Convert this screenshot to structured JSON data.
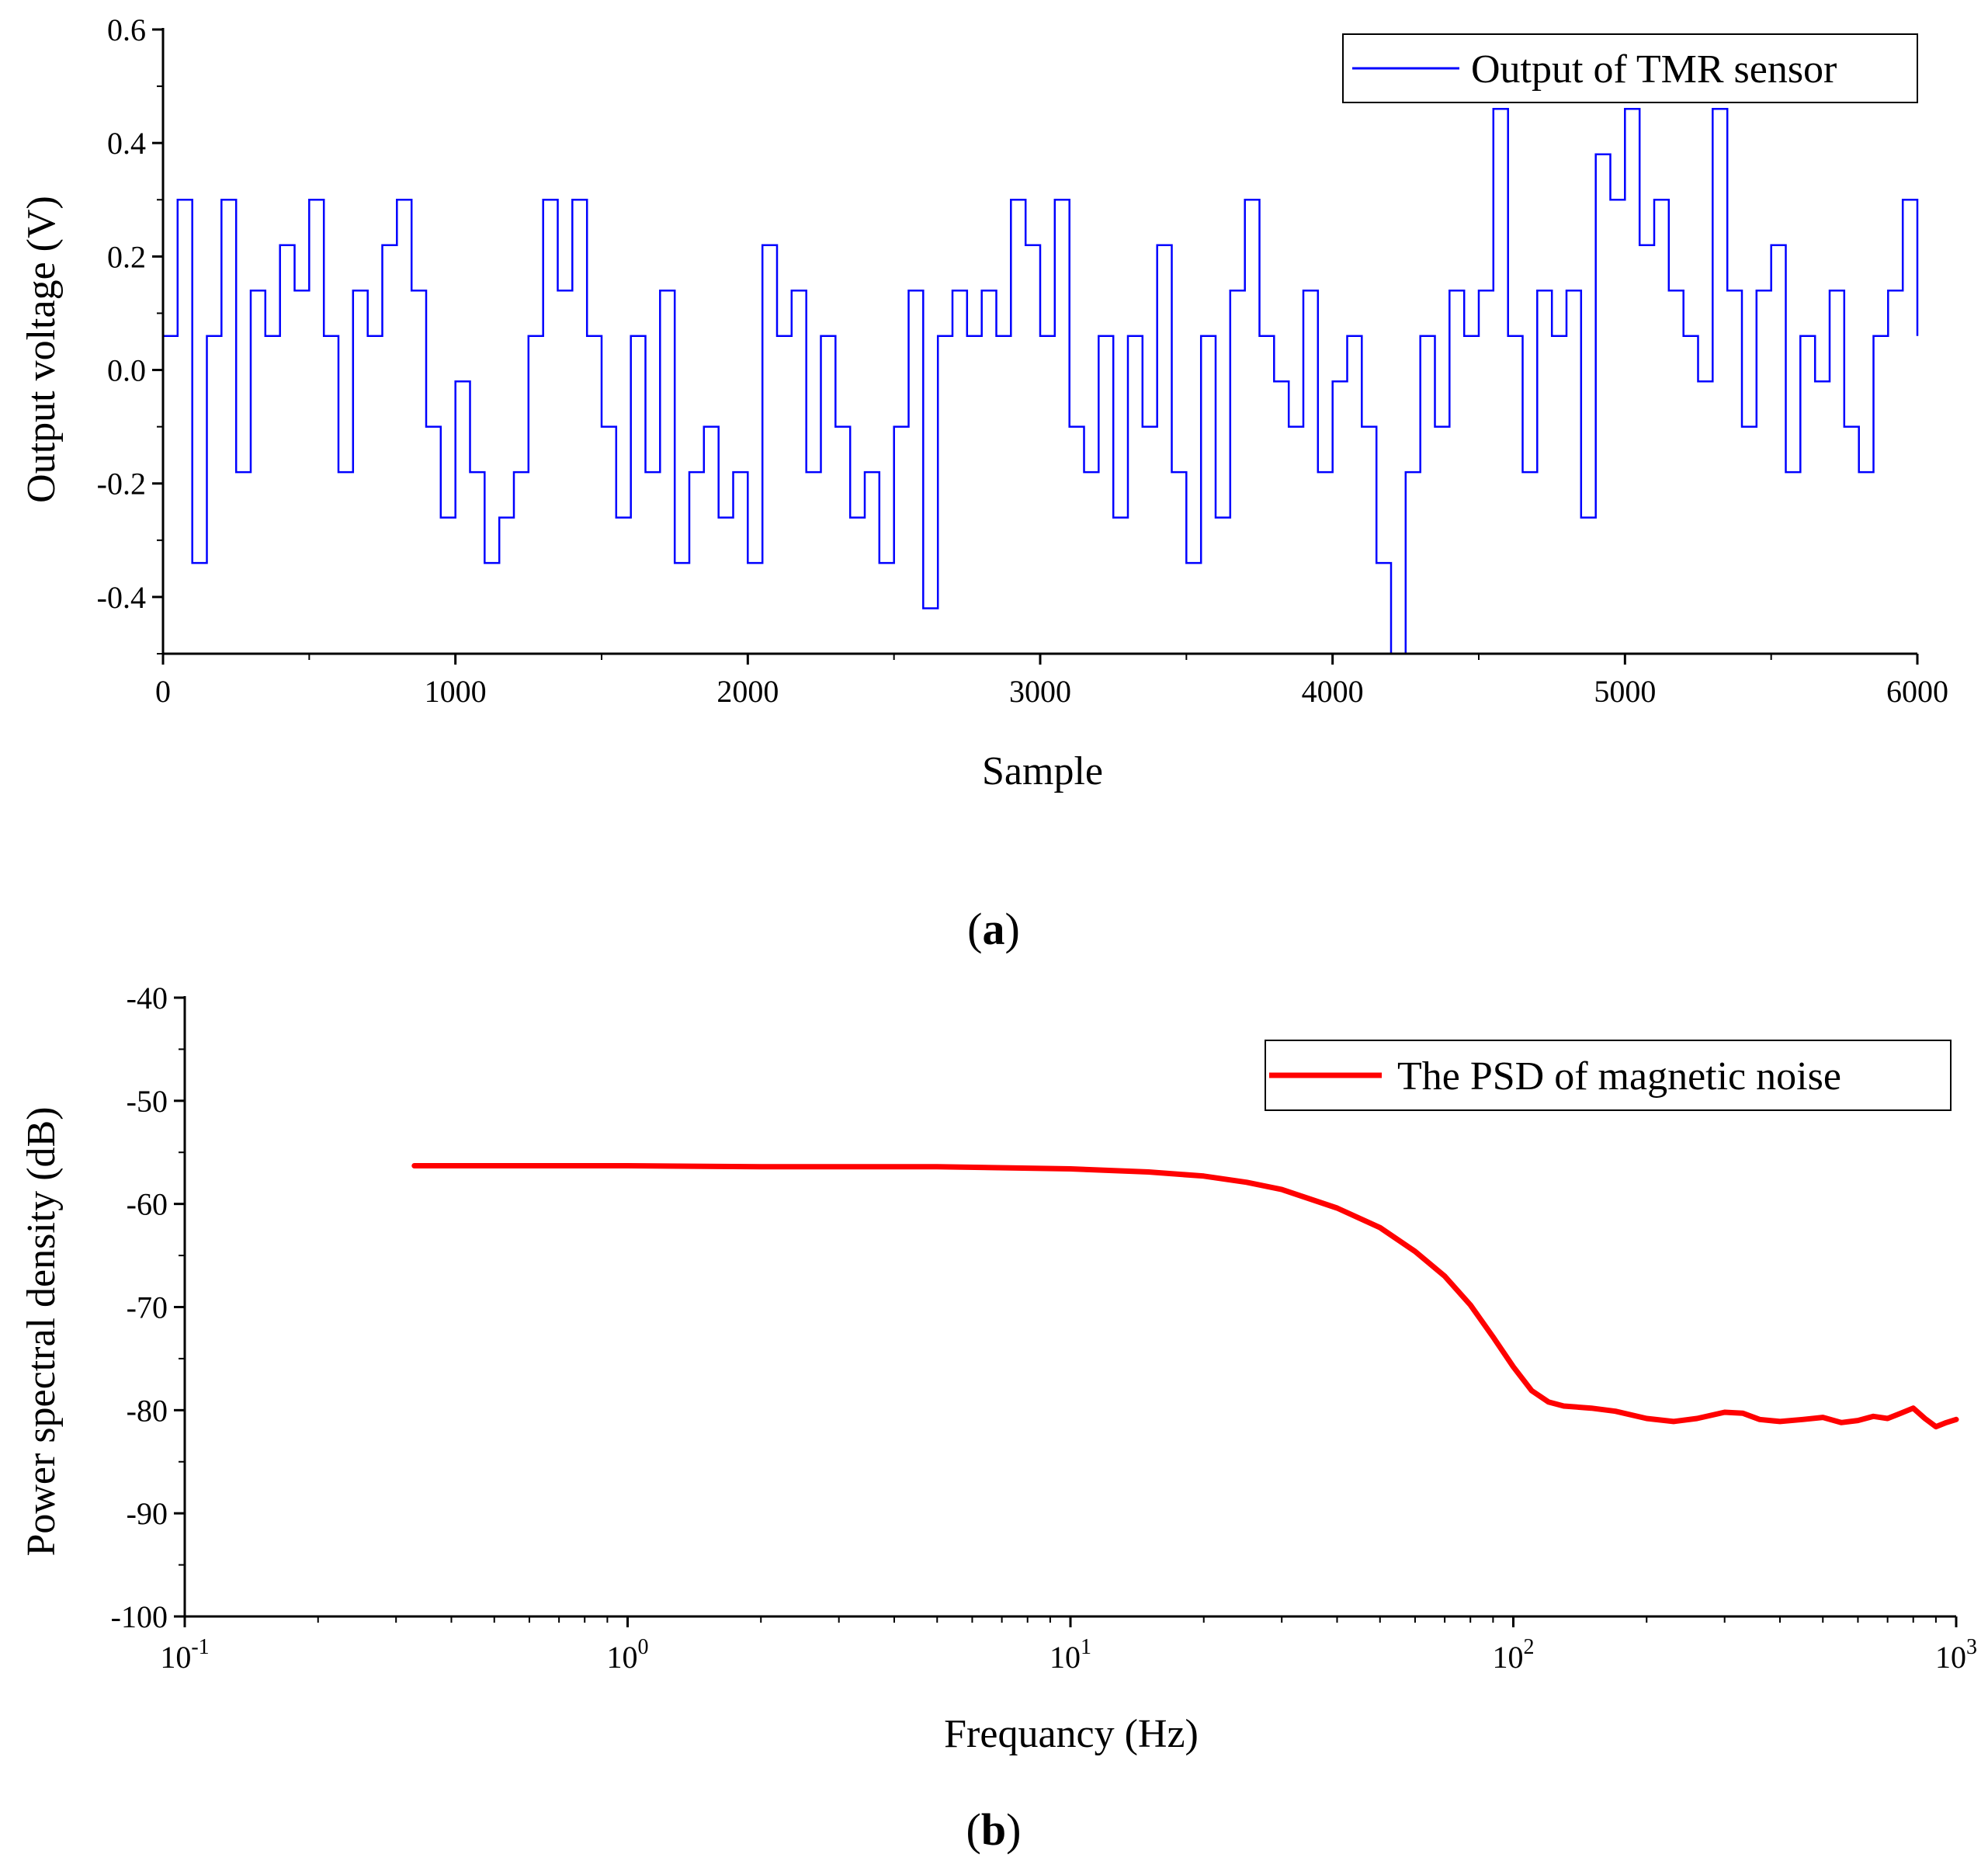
{
  "colors": {
    "series_a": "#0000ff",
    "series_b": "#ff0000",
    "axis": "#000000"
  },
  "chart_data": [
    {
      "panel": "(a)",
      "panel_letter": "a",
      "type": "line",
      "title": "",
      "xlabel": "Sample",
      "ylabel": "Output voltage (V)",
      "xlim": [
        0,
        6000
      ],
      "ylim": [
        -0.5,
        0.6
      ],
      "x_ticks": [
        0,
        1000,
        2000,
        3000,
        4000,
        5000,
        6000
      ],
      "x_tick_labels": [
        "0",
        "1000",
        "2000",
        "3000",
        "4000",
        "5000",
        "6000"
      ],
      "y_ticks": [
        -0.4,
        -0.2,
        0.0,
        0.2,
        0.4,
        0.6
      ],
      "y_tick_labels": [
        "-0.4",
        "-0.2",
        "0.0",
        "0.2",
        "0.4",
        "0.6"
      ],
      "legend": {
        "position": "top-right",
        "entries": [
          "Output of TMR sensor"
        ]
      },
      "series": [
        {
          "name": "Output of TMR sensor",
          "style": "step",
          "x": [
            0,
            50,
            100,
            150,
            200,
            250,
            300,
            350,
            400,
            450,
            500,
            550,
            600,
            650,
            700,
            750,
            800,
            850,
            900,
            950,
            1000,
            1050,
            1100,
            1150,
            1200,
            1250,
            1300,
            1350,
            1400,
            1450,
            1500,
            1550,
            1600,
            1650,
            1700,
            1750,
            1800,
            1850,
            1900,
            1950,
            2000,
            2050,
            2100,
            2150,
            2200,
            2250,
            2300,
            2350,
            2400,
            2450,
            2500,
            2550,
            2600,
            2650,
            2700,
            2750,
            2800,
            2850,
            2900,
            2950,
            3000,
            3050,
            3100,
            3150,
            3200,
            3250,
            3300,
            3350,
            3400,
            3450,
            3500,
            3550,
            3600,
            3650,
            3700,
            3750,
            3800,
            3850,
            3900,
            3950,
            4000,
            4050,
            4100,
            4150,
            4200,
            4250,
            4300,
            4350,
            4400,
            4450,
            4500,
            4550,
            4600,
            4650,
            4700,
            4750,
            4800,
            4850,
            4900,
            4950,
            5000,
            5050,
            5100,
            5150,
            5200,
            5250,
            5300,
            5350,
            5400,
            5450,
            5500,
            5550,
            5600,
            5650,
            5700,
            5750,
            5800,
            5850,
            5900,
            5950,
            6000
          ],
          "y": [
            0.06,
            0.3,
            -0.34,
            0.06,
            0.3,
            -0.18,
            0.14,
            0.06,
            0.22,
            0.14,
            0.3,
            0.06,
            -0.18,
            0.14,
            0.06,
            0.22,
            0.3,
            0.14,
            -0.1,
            -0.26,
            -0.02,
            -0.18,
            -0.34,
            -0.26,
            -0.18,
            0.06,
            0.3,
            0.14,
            0.3,
            0.06,
            -0.1,
            -0.26,
            0.06,
            -0.18,
            0.14,
            -0.34,
            -0.18,
            -0.1,
            -0.26,
            -0.18,
            -0.34,
            0.22,
            0.06,
            0.14,
            -0.18,
            0.06,
            -0.1,
            -0.26,
            -0.18,
            -0.34,
            -0.1,
            0.14,
            -0.42,
            0.06,
            0.14,
            0.06,
            0.14,
            0.06,
            0.3,
            0.22,
            0.06,
            0.3,
            -0.1,
            -0.18,
            0.06,
            -0.26,
            0.06,
            -0.1,
            0.22,
            -0.18,
            -0.34,
            0.06,
            -0.26,
            0.14,
            0.3,
            0.06,
            -0.02,
            -0.1,
            0.14,
            -0.18,
            -0.02,
            0.06,
            -0.1,
            -0.34,
            -0.5,
            -0.18,
            0.06,
            -0.1,
            0.14,
            0.06,
            0.14,
            0.46,
            0.06,
            -0.18,
            0.14,
            0.06,
            0.14,
            -0.26,
            0.38,
            0.3,
            0.46,
            0.22,
            0.3,
            0.14,
            0.06,
            -0.02,
            0.46,
            0.14,
            -0.1,
            0.14,
            0.22,
            -0.18,
            0.06,
            -0.02,
            0.14,
            -0.1,
            -0.18,
            0.06,
            0.14,
            0.3,
            0.06
          ]
        }
      ]
    },
    {
      "panel": "(b)",
      "panel_letter": "b",
      "type": "line",
      "title": "",
      "xlabel": "Frequancy (Hz)",
      "ylabel": "Power spectral density (dB)",
      "xscale": "log",
      "xlim": [
        0.1,
        1000
      ],
      "ylim": [
        -100,
        -40
      ],
      "x_tick_base": "10",
      "x_tick_exponents": [
        "-1",
        "0",
        "1",
        "2",
        "3"
      ],
      "y_ticks": [
        -100,
        -90,
        -80,
        -70,
        -60,
        -50,
        -40
      ],
      "y_tick_labels": [
        "-100",
        "-90",
        "-80",
        "-70",
        "-60",
        "-50",
        "-40"
      ],
      "legend": {
        "position": "top-right",
        "entries": [
          "The PSD of magnetic noise"
        ]
      },
      "series": [
        {
          "name": "The PSD of magnetic noise",
          "x": [
            0.33,
            0.5,
            1,
            2,
            5,
            10,
            15,
            20,
            25,
            30,
            40,
            50,
            60,
            70,
            80,
            90,
            100,
            110,
            120,
            130,
            150,
            170,
            200,
            230,
            260,
            300,
            330,
            360,
            400,
            450,
            500,
            550,
            600,
            650,
            700,
            750,
            800,
            850,
            900,
            950,
            1000
          ],
          "y": [
            -56.3,
            -56.3,
            -56.3,
            -56.4,
            -56.4,
            -56.6,
            -56.9,
            -57.3,
            -57.9,
            -58.6,
            -60.4,
            -62.3,
            -64.6,
            -67.0,
            -69.8,
            -72.9,
            -75.8,
            -78.1,
            -79.2,
            -79.6,
            -79.8,
            -80.1,
            -80.8,
            -81.1,
            -80.8,
            -80.2,
            -80.3,
            -80.9,
            -81.1,
            -80.9,
            -80.7,
            -81.2,
            -81.0,
            -80.6,
            -80.8,
            -80.3,
            -79.8,
            -80.8,
            -81.6,
            -81.2,
            -80.9
          ]
        }
      ]
    }
  ]
}
